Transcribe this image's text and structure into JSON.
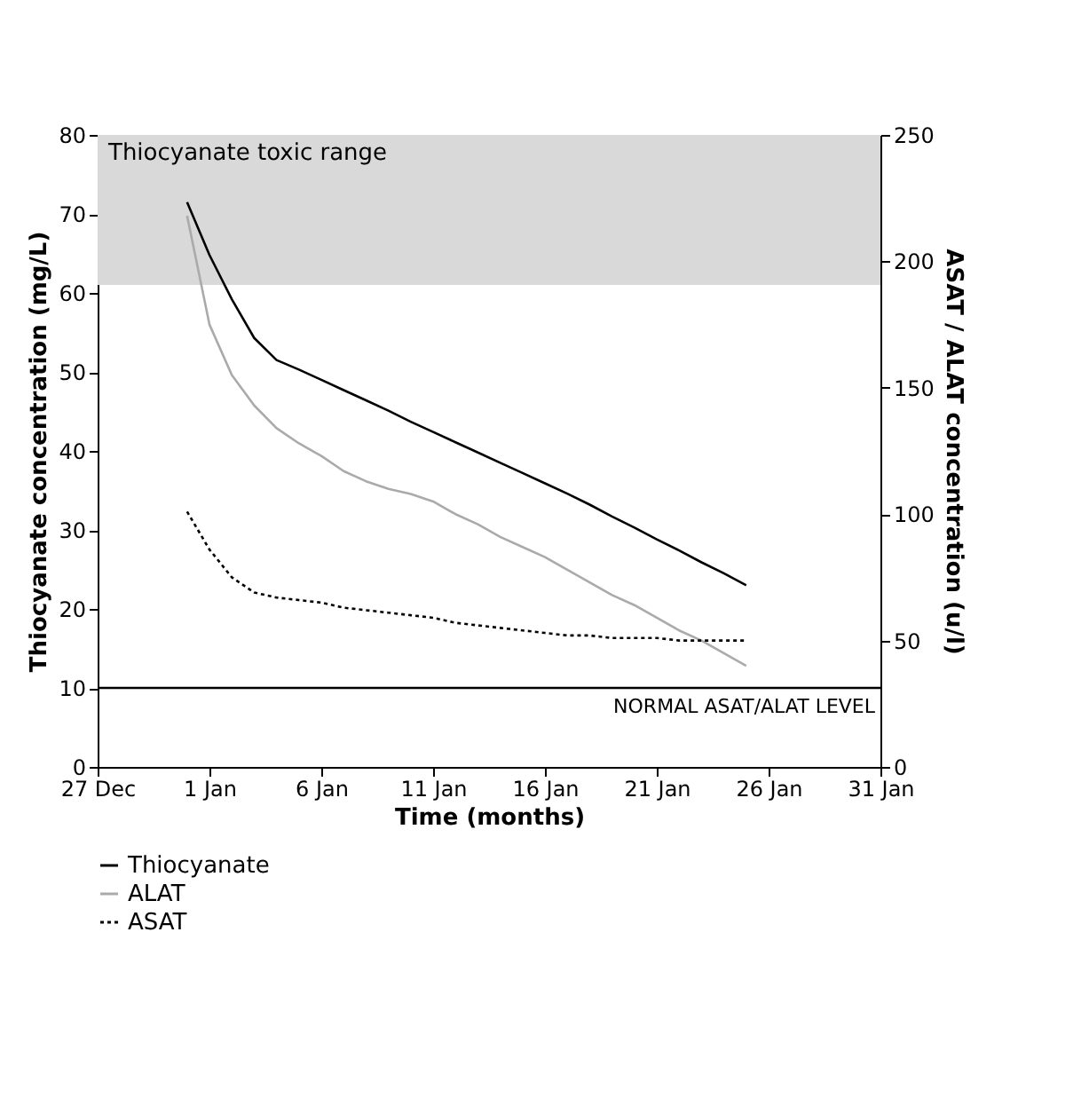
{
  "chart_data": {
    "type": "line",
    "xlabel": "Time (months)",
    "ylabel": "Thiocyanate concentration (mg/L)",
    "y2label": "ASAT / ALAT concentration (u/l)",
    "categories": [
      "27 Dec",
      null,
      null,
      null,
      null,
      "1 Jan",
      null,
      null,
      null,
      null,
      "6 Jan",
      null,
      null,
      null,
      null,
      "11 Jan",
      null,
      null,
      null,
      null,
      "16 Jan",
      null,
      null,
      null,
      null,
      "21 Jan",
      null,
      null,
      null,
      null,
      "26 Jan",
      null,
      null,
      null,
      null,
      "31 Jan"
    ],
    "ylim": [
      0,
      80
    ],
    "yticks": [
      0,
      10,
      20,
      30,
      40,
      50,
      60,
      70,
      80
    ],
    "y2lim": [
      0,
      250
    ],
    "y2ticks": [
      0,
      50,
      100,
      150,
      200,
      250
    ],
    "series": [
      {
        "name": "Thiocyanate",
        "color": "#000000",
        "line_style": "solid",
        "values": [
          null,
          null,
          null,
          null,
          71.5,
          64.8,
          59.2,
          54.3,
          51.5,
          50.3,
          49.0,
          47.7,
          46.4,
          45.1,
          43.7,
          42.4,
          41.1,
          39.8,
          38.5,
          37.2,
          35.9,
          34.6,
          33.2,
          31.7,
          30.3,
          28.8,
          27.4,
          25.9,
          24.5,
          23.0,
          null,
          null,
          null,
          null,
          null,
          null
        ]
      },
      {
        "name": "ALAT",
        "color": "#aaaaaa",
        "line_style": "solid",
        "axis": "y2",
        "values": [
          null,
          null,
          null,
          null,
          218,
          175,
          155,
          143,
          134,
          128,
          123,
          117,
          113,
          110,
          108,
          105,
          100,
          96,
          91,
          87,
          83,
          78,
          73,
          68,
          64,
          59,
          54,
          50,
          45,
          40,
          null,
          null,
          null,
          null,
          null,
          null
        ]
      },
      {
        "name": "ASAT",
        "color": "#000000",
        "line_style": "dotted",
        "axis": "y2",
        "values": [
          null,
          null,
          null,
          null,
          101,
          86,
          75,
          69,
          67,
          66,
          65,
          63,
          62,
          61,
          60,
          59,
          57,
          56,
          55,
          54,
          53,
          52,
          52,
          51,
          51,
          51,
          50,
          50,
          50,
          50,
          null,
          null,
          null,
          null,
          null,
          null
        ]
      }
    ],
    "bands": [
      {
        "axis": "y",
        "from": 61,
        "to": 80,
        "label": "Thiocyanate toxic range",
        "color": "#d9d9d9"
      }
    ],
    "ref_lines": [
      {
        "axis": "y",
        "value": 10,
        "label": "NORMAL ASAT/ALAT LEVEL",
        "color": "#000000"
      }
    ],
    "grid": false,
    "legend": "bottom"
  }
}
